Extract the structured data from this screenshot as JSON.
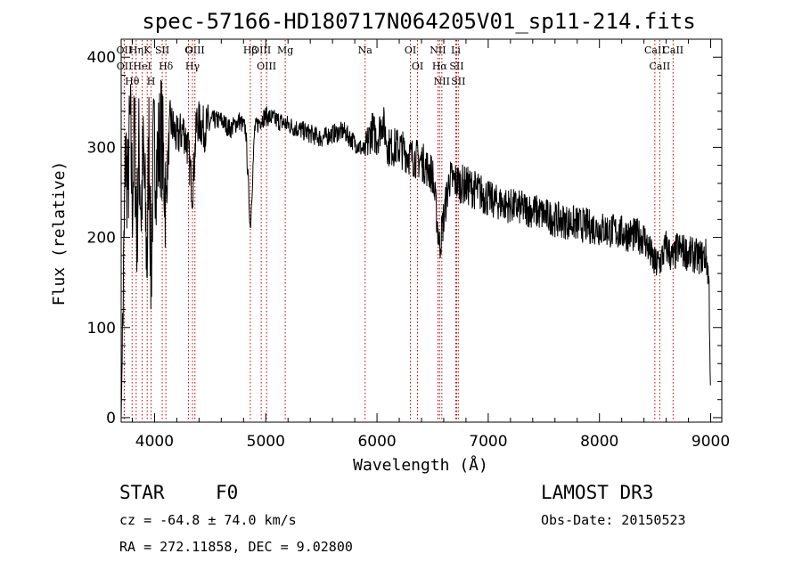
{
  "chart_data": {
    "type": "line",
    "title": "spec-57166-HD180717N064205V01_sp11-214.fits",
    "xlabel": "Wavelength (Å)",
    "ylabel": "Flux (relative)",
    "xlim": [
      3700,
      9100
    ],
    "ylim": [
      -5,
      420
    ],
    "xticks": [
      "4000",
      "5000",
      "6000",
      "7000",
      "8000",
      "9000"
    ],
    "yticks": [
      "0",
      "100",
      "200",
      "300",
      "400"
    ],
    "xtick_values": [
      4000,
      5000,
      6000,
      7000,
      8000,
      9000
    ],
    "ytick_values": [
      0,
      100,
      200,
      300,
      400
    ],
    "spectrum": {
      "x": [
        3700,
        3720,
        3740,
        3760,
        3780,
        3800,
        3820,
        3840,
        3860,
        3880,
        3900,
        3933,
        3950,
        3968,
        3990,
        4020,
        4060,
        4102,
        4140,
        4200,
        4260,
        4300,
        4340,
        4380,
        4450,
        4520,
        4600,
        4680,
        4760,
        4820,
        4861,
        4900,
        4950,
        5000,
        5100,
        5200,
        5300,
        5400,
        5500,
        5600,
        5700,
        5800,
        5893,
        5950,
        6000,
        6050,
        6100,
        6200,
        6300,
        6400,
        6500,
        6563,
        6650,
        6750,
        6850,
        6950,
        7050,
        7200,
        7400,
        7600,
        7800,
        8000,
        8200,
        8400,
        8498,
        8542,
        8600,
        8662,
        8700,
        8800,
        8900,
        8960,
        8985,
        9000
      ],
      "y": [
        0,
        140,
        300,
        250,
        330,
        240,
        320,
        200,
        300,
        230,
        290,
        170,
        320,
        150,
        300,
        280,
        320,
        240,
        330,
        310,
        320,
        300,
        250,
        330,
        320,
        330,
        330,
        320,
        330,
        320,
        210,
        320,
        330,
        335,
        330,
        325,
        320,
        315,
        310,
        315,
        318,
        305,
        295,
        320,
        310,
        330,
        300,
        300,
        290,
        285,
        270,
        190,
        265,
        260,
        255,
        248,
        240,
        235,
        230,
        220,
        215,
        210,
        205,
        200,
        170,
        172,
        190,
        175,
        188,
        182,
        178,
        180,
        150,
        20
      ]
    },
    "lines": [
      {
        "label": "Hθ",
        "wl": 3798
      },
      {
        "label": "OII",
        "wl": 3727
      },
      {
        "label": "OII",
        "wl": 3729
      },
      {
        "label": "Hη",
        "wl": 3835
      },
      {
        "label": "HeI",
        "wl": 3889
      },
      {
        "label": "K",
        "wl": 3934
      },
      {
        "label": "H",
        "wl": 3969
      },
      {
        "label": "Hδ",
        "wl": 4102
      },
      {
        "label": "SII",
        "wl": 4069
      },
      {
        "label": "OIII",
        "wl": 4363
      },
      {
        "label": "Hγ",
        "wl": 4341
      },
      {
        "label": "G",
        "wl": 4305
      },
      {
        "label": "Hβ",
        "wl": 4861
      },
      {
        "label": "OIII",
        "wl": 5007
      },
      {
        "label": "OIII",
        "wl": 4959
      },
      {
        "label": "Mg",
        "wl": 5175
      },
      {
        "label": "Na",
        "wl": 5893
      },
      {
        "label": "OI",
        "wl": 6300
      },
      {
        "label": "OI",
        "wl": 6364
      },
      {
        "label": "Hα",
        "wl": 6563
      },
      {
        "label": "NII",
        "wl": 6548
      },
      {
        "label": "NII",
        "wl": 6583
      },
      {
        "label": "SII",
        "wl": 6716
      },
      {
        "label": "SII",
        "wl": 6731
      },
      {
        "label": "Li",
        "wl": 6708
      },
      {
        "label": "CaII",
        "wl": 8542
      },
      {
        "label": "CaII",
        "wl": 8498
      },
      {
        "label": "CaII",
        "wl": 8662
      }
    ]
  },
  "info": {
    "class": "STAR",
    "subclass": "F0",
    "survey": "LAMOST DR3",
    "cz": "cz = -64.8 ± 74.0 km/s",
    "obs_date": "Obs-Date: 20150523",
    "coords": "RA = 272.11858, DEC =   9.02800"
  }
}
